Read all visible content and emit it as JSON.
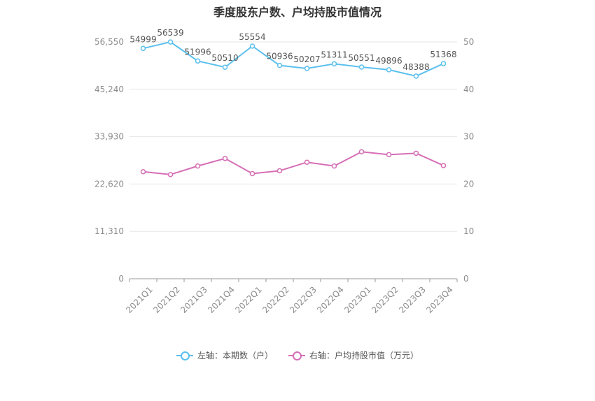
{
  "chart_data": {
    "type": "line",
    "title": "季度股东户数、户均持股市值情况",
    "categories": [
      "2021Q1",
      "2021Q2",
      "2021Q3",
      "2021Q4",
      "2022Q1",
      "2022Q2",
      "2022Q3",
      "2022Q4",
      "2023Q1",
      "2023Q2",
      "2023Q3",
      "2023Q4"
    ],
    "left_axis": {
      "ticks": [
        "0",
        "11,310",
        "22,620",
        "33,930",
        "45,240",
        "56,550"
      ],
      "ylim": [
        0,
        56550
      ]
    },
    "right_axis": {
      "ticks": [
        "0",
        "10",
        "20",
        "30",
        "40",
        "50"
      ],
      "ylim": [
        0,
        50
      ]
    },
    "grid": true,
    "legend_position": "bottom",
    "series": [
      {
        "name": "左轴：本期数（户）",
        "axis": "left",
        "color": "#5bc0ee",
        "values": [
          54999,
          56539,
          51996,
          50510,
          55554,
          50936,
          50207,
          51311,
          50551,
          49896,
          48388,
          51368
        ],
        "labels": [
          "54999",
          "56539",
          "51996",
          "50510",
          "55554",
          "50936",
          "50207",
          "51311",
          "50551",
          "49896",
          "48388",
          "51368"
        ]
      },
      {
        "name": "右轴：户均持股市值（万元）",
        "axis": "right",
        "color": "#d56eb5",
        "values": [
          22.6,
          22.0,
          23.8,
          25.4,
          22.2,
          22.8,
          24.6,
          23.8,
          26.8,
          26.2,
          26.5,
          23.9
        ]
      }
    ]
  }
}
